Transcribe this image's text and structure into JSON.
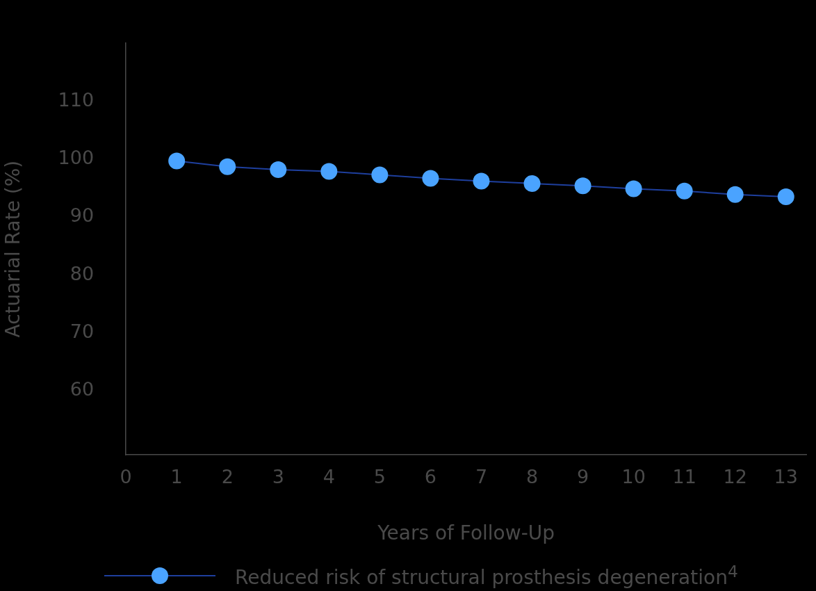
{
  "chart_data": {
    "type": "line",
    "xlabel": "Years of Follow-Up",
    "ylabel": "Actuarial Rate (%)",
    "x": [
      1,
      2,
      3,
      4,
      5,
      6,
      7,
      8,
      9,
      10,
      11,
      12,
      13
    ],
    "series": [
      {
        "name": "Reduced risk of structural prosthesis degeneration$^{4}$",
        "color": "#1e3f9e",
        "colors": [
          "#4aa3ff",
          "#4aa3ff",
          "#4aa3ff",
          "#4aa3ff",
          "#4aa3ff",
          "#4aa3ff",
          "#4aa3ff",
          "#4aa3ff",
          "#4aa3ff",
          "#4aa3ff",
          "#4aa3ff",
          "#4aa3ff",
          "#4aa3ff"
        ],
        "values": [
          99.7,
          98.7,
          98.2,
          97.9,
          97.3,
          96.7,
          96.2,
          95.8,
          95.4,
          94.9,
          94.5,
          93.9,
          93.5
        ]
      }
    ],
    "xlim": [
      0,
      13.4
    ],
    "xticks": [
      0,
      1,
      2,
      3,
      4,
      5,
      6,
      7,
      8,
      9,
      10,
      11,
      12,
      13
    ],
    "ylim": [
      49,
      120
    ],
    "yticks": [
      60,
      70,
      80,
      90,
      100,
      110
    ],
    "grid": false,
    "legend": "bottom left",
    "marker": "circle",
    "line_style": "solid"
  }
}
